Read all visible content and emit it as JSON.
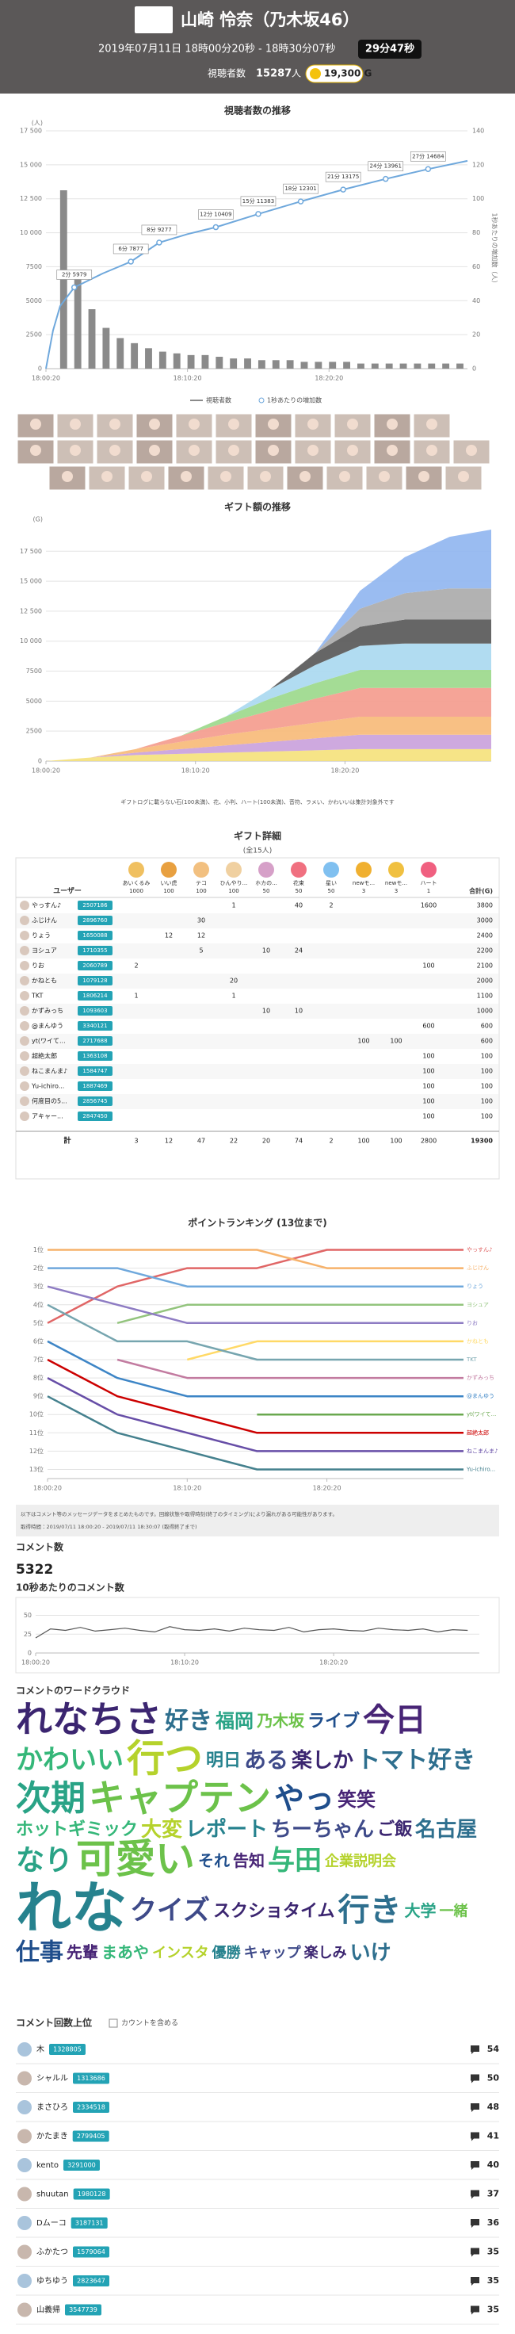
{
  "header": {
    "title": "山崎 怜奈（乃木坂46）",
    "datetime": "2019年07月11日 18時00分20秒 - 18時30分07秒",
    "duration": "29分47秒",
    "viewers_label": "視聴者数",
    "viewers": 15287,
    "viewers_unit": "人",
    "gold": "19,300 G"
  },
  "chart_data": [
    {
      "type": "line",
      "title": "視聴者数の推移",
      "y_unit": "(人)",
      "y2label": "1秒あたりの増加数（人）",
      "xlim": [
        0,
        29.78
      ],
      "xticks": [
        {
          "value": 0,
          "label": "18:00:20"
        },
        {
          "value": 10,
          "label": "18:10:20"
        },
        {
          "value": 20,
          "label": "18:20:20"
        }
      ],
      "ylim": [
        0,
        17500
      ],
      "yticks": [
        0,
        2500,
        5000,
        7500,
        {
          "value": 10000,
          "label": "10 000"
        },
        {
          "value": 12500,
          "label": "12 500"
        },
        {
          "value": 15000,
          "label": "15 000"
        },
        {
          "value": 17500,
          "label": "17 500"
        }
      ],
      "y2lim": [
        0,
        140
      ],
      "y2ticks": [
        0,
        20,
        40,
        60,
        80,
        100,
        120,
        140
      ],
      "grid": true,
      "series": [
        {
          "name": "視聴者数",
          "color": "#6fa8dc",
          "x": [
            0,
            0.5,
            1,
            2,
            4,
            6,
            8,
            10,
            12,
            15,
            18,
            21,
            24,
            27,
            29.78
          ],
          "values": [
            0,
            2800,
            4600,
            5979,
            7000,
            7877,
            9277,
            9900,
            10409,
            11383,
            12301,
            13175,
            13961,
            14684,
            15287
          ]
        },
        {
          "name": "1秒あたりの増加数",
          "color": "#8a8a8a",
          "axis": "y2",
          "x": [
            0,
            1,
            2,
            3,
            4,
            5,
            6,
            7,
            8,
            9,
            10,
            11,
            12,
            13,
            14,
            15,
            16,
            17,
            18,
            19,
            20,
            21,
            22,
            23,
            24,
            25,
            26,
            27,
            28,
            29
          ],
          "values": [
            0,
            105,
            55,
            35,
            24,
            18,
            15,
            12,
            10,
            9,
            8,
            8,
            7,
            6,
            6,
            5,
            5,
            5,
            4,
            4,
            4,
            4,
            3,
            3,
            3,
            3,
            3,
            3,
            3,
            3
          ]
        }
      ],
      "annotations": [
        {
          "label": "2分 5979",
          "x": 2,
          "y": 5979
        },
        {
          "label": "6分 7877",
          "x": 6,
          "y": 7877
        },
        {
          "label": "8分 9277",
          "x": 8,
          "y": 9277
        },
        {
          "label": "12分 10409",
          "x": 12,
          "y": 10409
        },
        {
          "label": "15分 11383",
          "x": 15,
          "y": 11383
        },
        {
          "label": "18分 12301",
          "x": 18,
          "y": 12301
        },
        {
          "label": "21分 13175",
          "x": 21,
          "y": 13175
        },
        {
          "label": "24分 13961",
          "x": 24,
          "y": 13961
        },
        {
          "label": "27分 14684",
          "x": 27,
          "y": 14684
        }
      ]
    },
    {
      "type": "area",
      "stacked": true,
      "title": "ギフト額の推移",
      "y_unit": "(G)",
      "note": "ギフトログに載らない石(100未満)、花、小判、ハート(100未満)、音符、ラメい、かわいいは集計対象外です",
      "xlim": [
        0,
        29.78
      ],
      "xticks": [
        {
          "value": 0,
          "label": "18:00:20"
        },
        {
          "value": 10,
          "label": "18:10:20"
        },
        {
          "value": 20,
          "label": "18:20:20"
        }
      ],
      "ylim": [
        0,
        19500
      ],
      "yticks": [
        0,
        2500,
        5000,
        7500,
        {
          "value": 10000,
          "label": "10 000"
        },
        {
          "value": 12500,
          "label": "12 500"
        },
        {
          "value": 15000,
          "label": "15 000"
        },
        {
          "value": 17500,
          "label": "17 500"
        }
      ],
      "grid": true,
      "x": [
        0,
        3,
        6,
        9,
        12,
        15,
        18,
        21,
        24,
        27,
        29.78
      ],
      "series": [
        {
          "color": "#f5e17a",
          "values": [
            0,
            300,
            500,
            600,
            700,
            800,
            900,
            1000,
            1000,
            1000,
            1000
          ]
        },
        {
          "color": "#c9a0dc",
          "values": [
            0,
            0,
            200,
            400,
            600,
            800,
            1000,
            1200,
            1200,
            1200,
            1200
          ]
        },
        {
          "color": "#f7b977",
          "values": [
            0,
            0,
            300,
            600,
            900,
            1100,
            1300,
            1500,
            1500,
            1500,
            1500
          ]
        },
        {
          "color": "#f49a8c",
          "values": [
            0,
            0,
            0,
            500,
            1000,
            1500,
            2000,
            2400,
            2400,
            2400,
            2400
          ]
        },
        {
          "color": "#9ad88a",
          "values": [
            0,
            0,
            0,
            0,
            500,
            1000,
            1300,
            1500,
            1500,
            1500,
            1500
          ]
        },
        {
          "color": "#a8d8f0",
          "values": [
            0,
            0,
            0,
            0,
            0,
            800,
            1500,
            2000,
            2200,
            2200,
            2200
          ]
        },
        {
          "color": "#555555",
          "values": [
            0,
            0,
            0,
            0,
            0,
            0,
            1000,
            1600,
            2000,
            2000,
            2000
          ]
        },
        {
          "color": "#aaaaaa",
          "values": [
            0,
            0,
            0,
            0,
            0,
            0,
            0,
            1500,
            2200,
            2600,
            2600
          ]
        },
        {
          "color": "#8fb5f0",
          "values": [
            0,
            0,
            0,
            0,
            0,
            0,
            0,
            1500,
            3000,
            4300,
            4900
          ]
        }
      ]
    },
    {
      "type": "line",
      "title": "ポイントランキング (13位まで)",
      "xlim": [
        0,
        29.78
      ],
      "xticks": [
        {
          "value": 0,
          "label": "18:00:20"
        },
        {
          "value": 10,
          "label": "18:10:20"
        },
        {
          "value": 20,
          "label": "18:20:20"
        }
      ],
      "ylim": [
        13.5,
        0.5
      ],
      "yticks": [
        {
          "value": 1,
          "label": "1位"
        },
        {
          "value": 2,
          "label": "2位"
        },
        {
          "value": 3,
          "label": "3位"
        },
        {
          "value": 4,
          "label": "4位"
        },
        {
          "value": 5,
          "label": "5位"
        },
        {
          "value": 6,
          "label": "6位"
        },
        {
          "value": 7,
          "label": "7位"
        },
        {
          "value": 8,
          "label": "8位"
        },
        {
          "value": 9,
          "label": "9位"
        },
        {
          "value": 10,
          "label": "10位"
        },
        {
          "value": 11,
          "label": "11位"
        },
        {
          "value": 12,
          "label": "12位"
        },
        {
          "value": 13,
          "label": "13位"
        }
      ],
      "grid": true,
      "x": [
        0,
        5,
        10,
        15,
        20,
        25,
        29.78
      ],
      "series": [
        {
          "name": "やっすん♪",
          "color": "#e06666",
          "values": [
            5,
            3,
            2,
            2,
            1,
            1,
            1
          ]
        },
        {
          "name": "ふじけん",
          "color": "#f6b26b",
          "values": [
            1,
            1,
            1,
            1,
            2,
            2,
            2
          ]
        },
        {
          "name": "りょう",
          "color": "#6fa8dc",
          "values": [
            2,
            2,
            3,
            3,
            3,
            3,
            3
          ]
        },
        {
          "name": "ヨシュア",
          "color": "#93c47d",
          "values": [
            null,
            5,
            4,
            4,
            4,
            4,
            4
          ]
        },
        {
          "name": "りお",
          "color": "#8e7cc3",
          "values": [
            3,
            4,
            5,
            5,
            5,
            5,
            5
          ]
        },
        {
          "name": "かねとも",
          "color": "#ffd966",
          "values": [
            null,
            null,
            7,
            6,
            6,
            6,
            6
          ]
        },
        {
          "name": "TKT",
          "color": "#76a5af",
          "values": [
            4,
            6,
            6,
            7,
            7,
            7,
            7
          ]
        },
        {
          "name": "かずみっち",
          "color": "#c27ba0",
          "values": [
            null,
            7,
            8,
            8,
            8,
            8,
            8
          ]
        },
        {
          "name": "@まんゆう",
          "color": "#3d85c6",
          "values": [
            6,
            8,
            9,
            9,
            9,
            9,
            9
          ]
        },
        {
          "name": "yt(ワイて...",
          "color": "#6aa84f",
          "values": [
            null,
            null,
            null,
            10,
            10,
            10,
            10
          ]
        },
        {
          "name": "超絶太郎",
          "color": "#cc0000",
          "values": [
            7,
            9,
            10,
            11,
            11,
            11,
            11
          ]
        },
        {
          "name": "ねこまんま♪",
          "color": "#674ea7",
          "values": [
            8,
            10,
            11,
            12,
            12,
            12,
            12
          ]
        },
        {
          "name": "Yu-ichiro...",
          "color": "#45818e",
          "values": [
            9,
            11,
            12,
            13,
            13,
            13,
            13
          ]
        }
      ]
    },
    {
      "type": "line",
      "title": "10秒あたりのコメント数",
      "color": "#555555",
      "xlim": [
        0,
        29.78
      ],
      "xticks": [
        {
          "value": 0,
          "label": "18:00:20"
        },
        {
          "value": 10,
          "label": "18:10:20"
        },
        {
          "value": 20,
          "label": "18:20:20"
        }
      ],
      "ylim": [
        0,
        60
      ],
      "yticks": [
        0,
        25,
        50
      ],
      "grid": true,
      "x": [
        0,
        1,
        2,
        3,
        4,
        5,
        6,
        7,
        8,
        9,
        10,
        11,
        12,
        13,
        14,
        15,
        16,
        17,
        18,
        19,
        20,
        21,
        22,
        23,
        24,
        25,
        26,
        27,
        28,
        29
      ],
      "values": [
        20,
        32,
        30,
        34,
        29,
        31,
        33,
        30,
        28,
        35,
        31,
        30,
        32,
        29,
        33,
        31,
        30,
        34,
        28,
        31,
        32,
        30,
        29,
        33,
        31,
        30,
        32,
        28,
        31,
        30
      ]
    }
  ],
  "gift_table": {
    "title": "ギフト詳細",
    "subtitle": "(全15人)",
    "user_header": "ユーザー",
    "total_header": "合計(G)",
    "total_label": "計",
    "gifts": [
      {
        "name": "あいくるみ",
        "cost": 1000
      },
      {
        "name": "いい虎",
        "cost": 100
      },
      {
        "name": "テコ",
        "cost": 100
      },
      {
        "name": "ひんやり...",
        "cost": 100
      },
      {
        "name": "ホカの...",
        "cost": 50
      },
      {
        "name": "花束",
        "cost": 50
      },
      {
        "name": "星い",
        "cost": 50
      },
      {
        "name": "newモ...",
        "cost": 3
      },
      {
        "name": "newモ...",
        "cost": 3
      },
      {
        "name": "ハート",
        "cost": 1
      }
    ],
    "rows": [
      {
        "name": "やっすん♪",
        "id": "2507186",
        "cells": [
          null,
          null,
          null,
          1,
          null,
          40,
          2,
          null,
          null,
          1600
        ],
        "total": 3800
      },
      {
        "name": "ふじけん",
        "id": "2896760",
        "cells": [
          null,
          null,
          30,
          null,
          null,
          null,
          null,
          null,
          null,
          null
        ],
        "total": 3000
      },
      {
        "name": "りょう",
        "id": "1650088",
        "cells": [
          null,
          12,
          12,
          null,
          null,
          null,
          null,
          null,
          null,
          null
        ],
        "total": 2400
      },
      {
        "name": "ヨシュア",
        "id": "1710355",
        "cells": [
          null,
          null,
          5,
          null,
          10,
          24,
          null,
          null,
          null,
          null
        ],
        "total": 2200
      },
      {
        "name": "りお",
        "id": "2060789",
        "cells": [
          2,
          null,
          null,
          null,
          null,
          null,
          null,
          null,
          null,
          100
        ],
        "total": 2100
      },
      {
        "name": "かねとも",
        "id": "1079128",
        "cells": [
          null,
          null,
          null,
          20,
          null,
          null,
          null,
          null,
          null,
          null
        ],
        "total": 2000
      },
      {
        "name": "TKT",
        "id": "1806214",
        "cells": [
          1,
          null,
          null,
          1,
          null,
          null,
          null,
          null,
          null,
          null
        ],
        "total": 1100
      },
      {
        "name": "かずみっち",
        "id": "1093603",
        "cells": [
          null,
          null,
          null,
          null,
          10,
          10,
          null,
          null,
          null,
          null
        ],
        "total": 1000
      },
      {
        "name": "@まんゆう",
        "id": "3340121",
        "cells": [
          null,
          null,
          null,
          null,
          null,
          null,
          null,
          null,
          null,
          600
        ],
        "total": 600
      },
      {
        "name": "yt(ワイて...",
        "id": "2717688",
        "cells": [
          null,
          null,
          null,
          null,
          null,
          null,
          null,
          100,
          100,
          null
        ],
        "total": 600
      },
      {
        "name": "超絶太郎",
        "id": "1363108",
        "cells": [
          null,
          null,
          null,
          null,
          null,
          null,
          null,
          null,
          null,
          100
        ],
        "total": 100
      },
      {
        "name": "ねこまんま♪",
        "id": "1584747",
        "cells": [
          null,
          null,
          null,
          null,
          null,
          null,
          null,
          null,
          null,
          100
        ],
        "total": 100
      },
      {
        "name": "Yu-ichiro...",
        "id": "1887469",
        "cells": [
          null,
          null,
          null,
          null,
          null,
          null,
          null,
          null,
          null,
          100
        ],
        "total": 100
      },
      {
        "name": "何度目の5...",
        "id": "2856745",
        "cells": [
          null,
          null,
          null,
          null,
          null,
          null,
          null,
          null,
          null,
          100
        ],
        "total": 100
      },
      {
        "name": "アキャー...",
        "id": "2847450",
        "cells": [
          null,
          null,
          null,
          null,
          null,
          null,
          null,
          null,
          null,
          100
        ],
        "total": 100
      }
    ],
    "totals": [
      3,
      12,
      47,
      22,
      20,
      74,
      2,
      100,
      100,
      2800
    ],
    "grand_total": 19300
  },
  "note": {
    "text1": "以下はコメント等のメッセージデータをまとめたものです。回線状態や取得時刻(終了のタイミング)により漏れがある可能性があります。",
    "text2": "取得時間：2019/07/11 18:00:20 - 2019/07/11 18:30:07 (取得終了まで)"
  },
  "comment_count": {
    "title": "コメント数",
    "value": 5322
  },
  "wordcloud": {
    "title": "コメントのワードクラウド",
    "words": [
      "れなちさ",
      "好き",
      "福岡",
      "乃木坂",
      "ライブ",
      "今日",
      "かわいい",
      "行つ",
      "明日",
      "ある",
      "楽しか",
      "トマト好き",
      "次期",
      "キャプテン",
      "やっ",
      "笑笑",
      "ホットギミック",
      "大変",
      "レポート",
      "ちーちゃん",
      "ご飯",
      "名古屋",
      "なり",
      "可愛い",
      "それ",
      "告知",
      "与田",
      "企業説明会",
      "れな",
      "クイズ",
      "スクショタイム",
      "行き",
      "大学",
      "一緒",
      "仕事",
      "先輩",
      "まあや",
      "インスタ",
      "優勝",
      "キャップ",
      "楽しみ",
      "いけ"
    ]
  },
  "top_commenters": {
    "title": "コメント回数上位",
    "checkbox": "カウントを含める",
    "rows": [
      {
        "name": "木",
        "id": "1328805",
        "count": 54
      },
      {
        "name": "シャルル",
        "id": "1313686",
        "count": 50
      },
      {
        "name": "まさひろ",
        "id": "2334518",
        "count": 48
      },
      {
        "name": "かたまき",
        "id": "2799405",
        "count": 41
      },
      {
        "name": "kento",
        "id": "3291000",
        "count": 40
      },
      {
        "name": "shuutan",
        "id": "1980128",
        "count": 37
      },
      {
        "name": "Dムーコ",
        "id": "3187131",
        "count": 36
      },
      {
        "name": "ふかたつ",
        "id": "1579064",
        "count": 35
      },
      {
        "name": "ゆちゆう",
        "id": "2823647",
        "count": 35
      },
      {
        "name": "山義帰",
        "id": "3547739",
        "count": 35
      }
    ]
  }
}
